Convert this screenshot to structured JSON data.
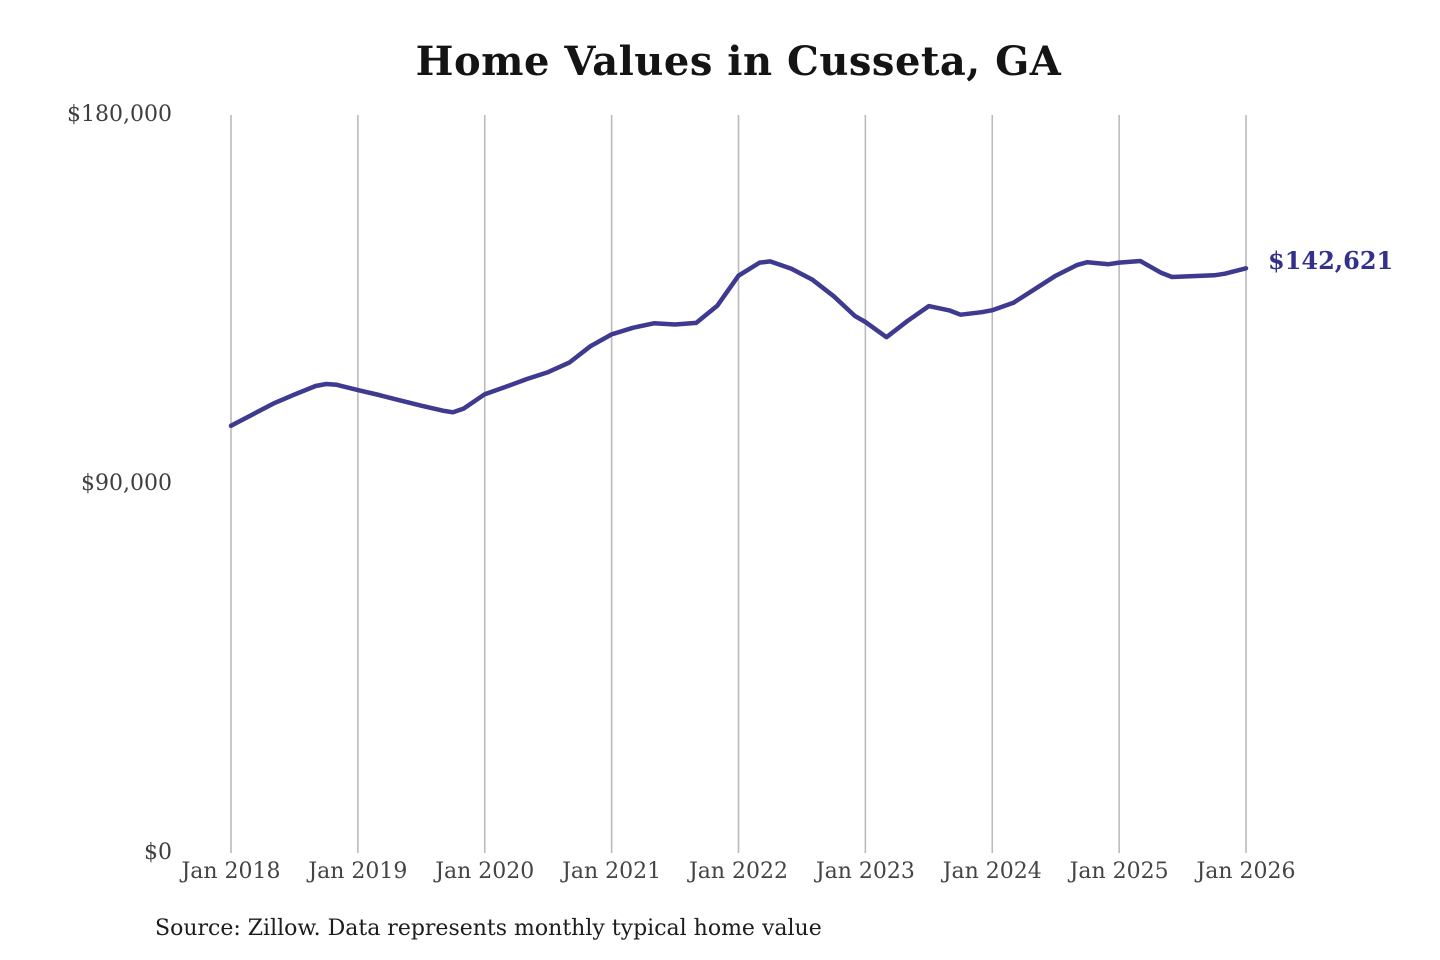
{
  "title": "Home Values in Cusseta, GA",
  "end_label": "$142,621",
  "source_note": "Source: Zillow. Data represents monthly typical home value",
  "colors": {
    "line": "#3d3a8f",
    "end_label_text": "#34318c",
    "gridline": "#bbbbbb",
    "axis_text": "#424242",
    "title_text": "#141414"
  },
  "chart_data": {
    "type": "line",
    "title": "Home Values in Cusseta, GA",
    "xlabel": "",
    "ylabel": "",
    "x_unit": "months since Jan 2018",
    "ylim": [
      0,
      180000
    ],
    "grid": "vertical-only",
    "legend": "none",
    "x_tick_months": [
      0,
      12,
      24,
      36,
      48,
      60,
      72,
      84,
      96
    ],
    "x_tick_labels": [
      "Jan 2018",
      "Jan 2019",
      "Jan 2020",
      "Jan 2021",
      "Jan 2022",
      "Jan 2023",
      "Jan 2024",
      "Jan 2025",
      "Jan 2026"
    ],
    "y_ticks": [
      {
        "value": 0,
        "label": "$0"
      },
      {
        "value": 90000,
        "label": "$90,000"
      },
      {
        "value": 180000,
        "label": "$180,000"
      }
    ],
    "end_value": 142621,
    "end_value_label": "$142,621",
    "series": [
      {
        "name": "Monthly typical home value",
        "points": [
          [
            0,
            104200
          ],
          [
            2,
            106900
          ],
          [
            4,
            109600
          ],
          [
            6,
            111800
          ],
          [
            8,
            113900
          ],
          [
            9,
            114400
          ],
          [
            10,
            114200
          ],
          [
            12,
            112900
          ],
          [
            14,
            111700
          ],
          [
            16,
            110400
          ],
          [
            18,
            109100
          ],
          [
            20,
            107900
          ],
          [
            21,
            107500
          ],
          [
            22,
            108400
          ],
          [
            24,
            111900
          ],
          [
            26,
            113700
          ],
          [
            28,
            115600
          ],
          [
            30,
            117300
          ],
          [
            32,
            119600
          ],
          [
            34,
            123600
          ],
          [
            36,
            126500
          ],
          [
            38,
            128100
          ],
          [
            40,
            129200
          ],
          [
            42,
            128900
          ],
          [
            44,
            129300
          ],
          [
            46,
            133500
          ],
          [
            48,
            140800
          ],
          [
            50,
            144000
          ],
          [
            51,
            144300
          ],
          [
            53,
            142500
          ],
          [
            55,
            139800
          ],
          [
            57,
            135800
          ],
          [
            59,
            131000
          ],
          [
            60,
            129500
          ],
          [
            62,
            125800
          ],
          [
            64,
            129800
          ],
          [
            66,
            133400
          ],
          [
            68,
            132300
          ],
          [
            69,
            131300
          ],
          [
            71,
            131900
          ],
          [
            72,
            132400
          ],
          [
            74,
            134200
          ],
          [
            76,
            137500
          ],
          [
            78,
            140800
          ],
          [
            80,
            143400
          ],
          [
            81,
            144100
          ],
          [
            83,
            143600
          ],
          [
            84,
            144000
          ],
          [
            86,
            144400
          ],
          [
            88,
            141500
          ],
          [
            89,
            140500
          ],
          [
            91,
            140700
          ],
          [
            93,
            140900
          ],
          [
            94,
            141300
          ],
          [
            96,
            142621
          ]
        ]
      }
    ]
  }
}
